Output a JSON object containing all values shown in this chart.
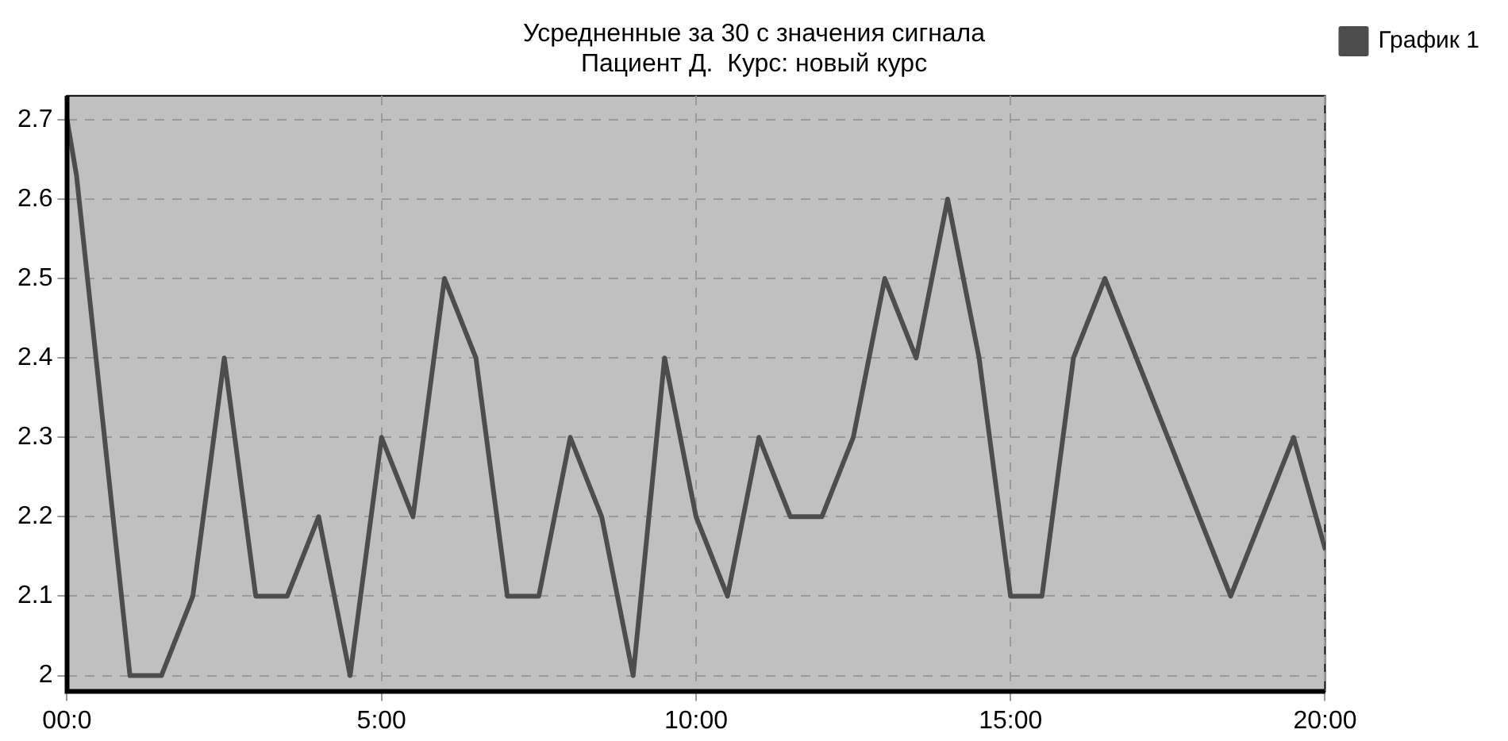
{
  "chart_data": {
    "type": "line",
    "title": "Усредненные за 30 с значения сигнала",
    "subtitle": "Пациент Д.  Курс: новый курс",
    "series": [
      {
        "name": "График 1",
        "color": "#4d4d4d",
        "x": [
          0,
          0.15,
          1,
          1.5,
          2,
          2.5,
          3,
          3.5,
          4,
          4.5,
          5,
          5.5,
          6,
          6.5,
          7,
          7.5,
          8,
          8.5,
          9,
          9.5,
          10,
          10.5,
          11,
          11.5,
          12,
          12.5,
          13,
          13.5,
          14,
          14.5,
          15,
          15.5,
          16,
          16.5,
          17,
          17.5,
          18,
          18.5,
          19,
          19.5,
          20
        ],
        "values": [
          2.7,
          2.63,
          2.0,
          2.0,
          2.1,
          2.4,
          2.1,
          2.1,
          2.2,
          2.0,
          2.3,
          2.2,
          2.5,
          2.4,
          2.1,
          2.1,
          2.3,
          2.2,
          2.0,
          2.4,
          2.2,
          2.1,
          2.3,
          2.2,
          2.2,
          2.3,
          2.5,
          2.4,
          2.6,
          2.4,
          2.1,
          2.1,
          2.4,
          2.5,
          2.4,
          2.3,
          2.2,
          2.1,
          2.2,
          2.3,
          2.16
        ]
      }
    ],
    "xlim": [
      0,
      20
    ],
    "xticks": [
      {
        "value": 0,
        "label": "00:0"
      },
      {
        "value": 5,
        "label": "5:00"
      },
      {
        "value": 10,
        "label": "10:00"
      },
      {
        "value": 15,
        "label": "15:00"
      },
      {
        "value": 20,
        "label": "20:00"
      }
    ],
    "ylim": [
      1.98,
      2.73
    ],
    "yticks": [
      2,
      2.1,
      2.2,
      2.3,
      2.4,
      2.5,
      2.6,
      2.7
    ],
    "grid": true,
    "legend": "top right",
    "marker": "none",
    "line_style": "solid"
  }
}
